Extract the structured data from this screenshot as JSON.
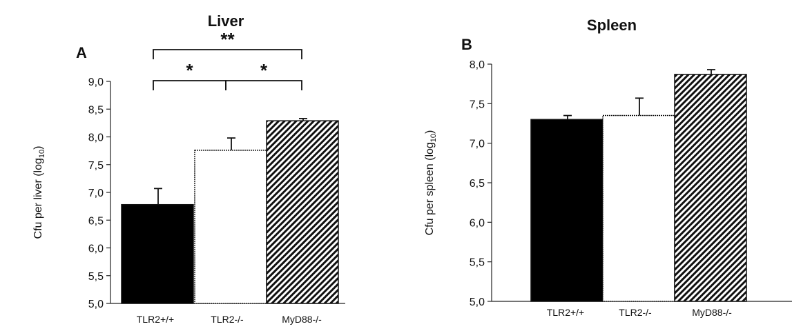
{
  "chart_data": [
    {
      "type": "bar",
      "panel_label": "A",
      "title": "Liver",
      "ylabel_main": "Cfu per liver (log",
      "ylabel_sub": "10",
      "ylabel_close": ")",
      "categories": [
        "TLR2+/+",
        "TLR2-/-",
        "MyD88-/-"
      ],
      "values": [
        6.78,
        7.76,
        8.29
      ],
      "errors": [
        0.29,
        0.22,
        0.04
      ],
      "fills": [
        "black",
        "white",
        "hatch"
      ],
      "ylim": [
        5.0,
        9.0
      ],
      "yticks": [
        "5,0",
        "5,5",
        "6,0",
        "6,5",
        "7,0",
        "7,5",
        "8,0",
        "8,5",
        "9,0"
      ],
      "significance": [
        {
          "from": 0,
          "to": 2,
          "label": "**"
        },
        {
          "from": 0,
          "to": 1,
          "label": "*"
        },
        {
          "from": 1,
          "to": 2,
          "label": "*"
        }
      ],
      "grid": false
    },
    {
      "type": "bar",
      "panel_label": "B",
      "title": "Spleen",
      "ylabel_main": "Cfu per spleen (log",
      "ylabel_sub": "10",
      "ylabel_close": ")",
      "categories": [
        "TLR2+/+",
        "TLR2-/-",
        "MyD88-/-"
      ],
      "values": [
        7.3,
        7.35,
        7.87
      ],
      "errors": [
        0.05,
        0.22,
        0.06
      ],
      "fills": [
        "black",
        "white",
        "hatch"
      ],
      "ylim": [
        5.0,
        8.0
      ],
      "yticks": [
        "5,0",
        "5,5",
        "6,0",
        "6,5",
        "7,0",
        "7,5",
        "8,0"
      ],
      "significance": [],
      "grid": false
    }
  ]
}
